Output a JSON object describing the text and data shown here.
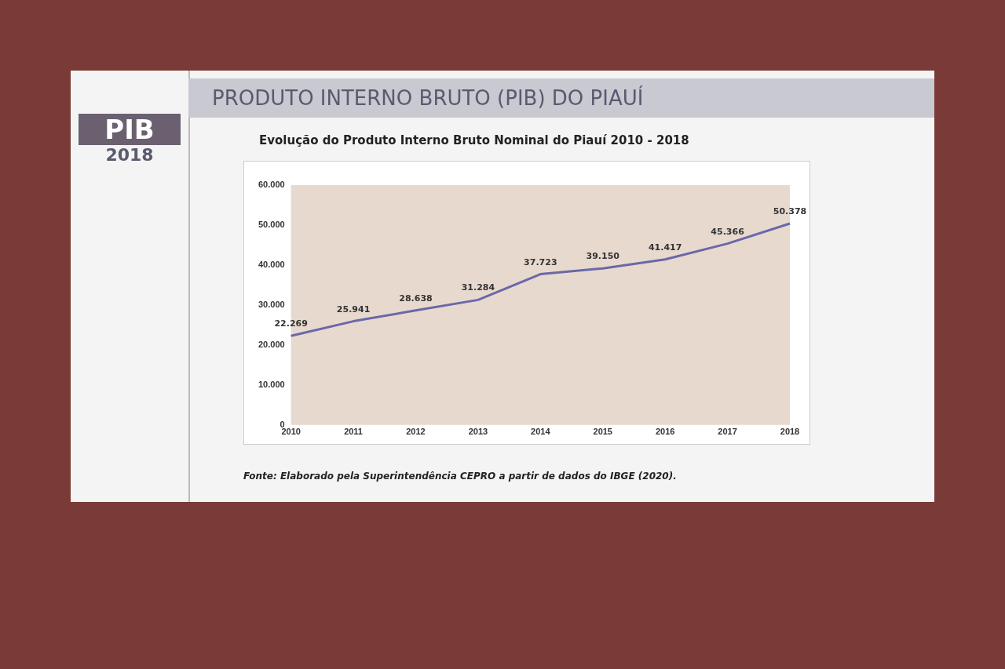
{
  "chart_data": {
    "type": "line",
    "title": "PRODUTO INTERNO BRUTO  (PIB) DO PIAUÍ",
    "subtitle": "Evolução do Produto Interno Bruto Nominal do Piauí 2010 - 2018",
    "annotations": [
      "PIB",
      "2018",
      "Fonte: Elaborado pela Superintendência CEPRO a partir de dados do IBGE (2020)."
    ],
    "categories": [
      "2010",
      "2011",
      "2012",
      "2013",
      "2014",
      "2015",
      "2016",
      "2017",
      "2018"
    ],
    "series": [
      {
        "color": "#6a68a8",
        "values": [
          22269,
          25941,
          28638,
          31284,
          37723,
          39150,
          41417,
          45366,
          50378
        ],
        "value_labels": [
          "22.269",
          "25.941",
          "28.638",
          "31.284",
          "37.723",
          "39.150",
          "41.417",
          "45.366",
          "50.378"
        ]
      }
    ],
    "ylim": [
      0,
      60000
    ],
    "yticks": [
      0,
      {
        "value": 10000,
        "label": "10.000"
      },
      {
        "value": 20000,
        "label": "20.000"
      },
      {
        "value": 30000,
        "label": "30.000"
      },
      {
        "value": 40000,
        "label": "40.000"
      },
      {
        "value": 50000,
        "label": "50.000"
      },
      {
        "value": 60000,
        "label": "60.000"
      }
    ],
    "grid": false,
    "legend": false,
    "marker": "none",
    "line_style": "solid"
  }
}
